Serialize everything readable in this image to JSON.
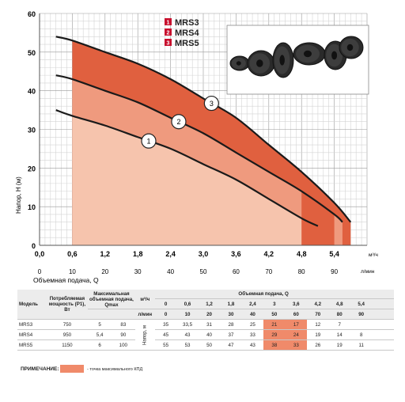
{
  "chart_data": {
    "type": "line",
    "ylabel": "Напор, H (м)",
    "xlabel": "Объемная подача, Q",
    "x_unit_top": "м³/ч",
    "x_unit_bottom": "л/мин",
    "xlim": [
      0,
      6
    ],
    "ylim": [
      0,
      60
    ],
    "x_ticks": [
      "0,0",
      "0,6",
      "1,2",
      "1,8",
      "2,4",
      "3,0",
      "3,6",
      "4,2",
      "4,8",
      "5,4"
    ],
    "x_ticks_lmin": [
      "0",
      "10",
      "20",
      "30",
      "40",
      "50",
      "60",
      "70",
      "80",
      "90"
    ],
    "y_ticks": [
      "0",
      "10",
      "20",
      "30",
      "40",
      "50",
      "60"
    ],
    "series": [
      {
        "name": "MRS3",
        "marker": "1",
        "x": [
          0.3,
          0.6,
          1.2,
          1.8,
          2.4,
          3.0,
          3.6,
          4.2,
          4.8,
          5.1
        ],
        "y": [
          35,
          33.5,
          31,
          28,
          25,
          21,
          17,
          12,
          7,
          5
        ]
      },
      {
        "name": "MRS4",
        "marker": "2",
        "x": [
          0.3,
          0.6,
          1.2,
          1.8,
          2.4,
          3.0,
          3.6,
          4.2,
          4.8,
          5.4,
          5.55
        ],
        "y": [
          44,
          43,
          40,
          37,
          33,
          29,
          24,
          19,
          14,
          8,
          6
        ]
      },
      {
        "name": "MRS5",
        "marker": "3",
        "x": [
          0.3,
          0.6,
          1.2,
          1.8,
          2.4,
          3.0,
          3.6,
          4.2,
          4.8,
          5.4,
          5.7
        ],
        "y": [
          54,
          53,
          50,
          47,
          43,
          38,
          33,
          26,
          19,
          11,
          6
        ]
      }
    ],
    "efficiency_zone": {
      "x": [
        0.6,
        3.6
      ],
      "x_alt": [
        4.8,
        5.4
      ]
    },
    "legend": [
      {
        "num": "1",
        "label": "MRS3"
      },
      {
        "num": "2",
        "label": "MRS4"
      },
      {
        "num": "3",
        "label": "MRS5"
      }
    ]
  },
  "table": {
    "h_model": "Модель",
    "h_power": "Потребляемая мощность (P1), Вт",
    "h_qmax": "Максимальная объемная подача, Qmax",
    "h_flow": "Объемная подача, Q",
    "h_head": "Напор, м",
    "unit_m3": "м³/ч",
    "unit_lmin": "л/мин",
    "q_m3": [
      "0",
      "0,6",
      "1,2",
      "1,8",
      "2,4",
      "3",
      "3,6",
      "4,2",
      "4,8",
      "5,4"
    ],
    "q_lmin": [
      "0",
      "10",
      "20",
      "30",
      "40",
      "50",
      "60",
      "70",
      "80",
      "90"
    ],
    "rows": [
      {
        "model": "MRS3",
        "power": "750",
        "qmax_m3": "5",
        "qmax_l": "83",
        "head": [
          "35",
          "33,5",
          "31",
          "28",
          "25",
          "21",
          "17",
          "12",
          "7",
          ""
        ]
      },
      {
        "model": "MRS4",
        "power": "950",
        "qmax_m3": "5,4",
        "qmax_l": "90",
        "head": [
          "45",
          "43",
          "40",
          "37",
          "33",
          "29",
          "24",
          "19",
          "14",
          "8"
        ]
      },
      {
        "model": "MRS5",
        "power": "1150",
        "qmax_m3": "6",
        "qmax_l": "100",
        "head": [
          "55",
          "53",
          "50",
          "47",
          "43",
          "38",
          "33",
          "26",
          "19",
          "11"
        ]
      }
    ],
    "highlight_cols": [
      5,
      6
    ]
  },
  "note": {
    "label": "ПРИМЕЧАНИЕ:",
    "text": "- точка максимального КПД"
  },
  "colors": {
    "zone_light": "#f6c4ad",
    "zone_mid": "#ef9a7e",
    "zone_dark": "#e0603f",
    "curve": "#1a1a1a",
    "highlight": "#f08a6a",
    "brand": "#c8102e"
  }
}
